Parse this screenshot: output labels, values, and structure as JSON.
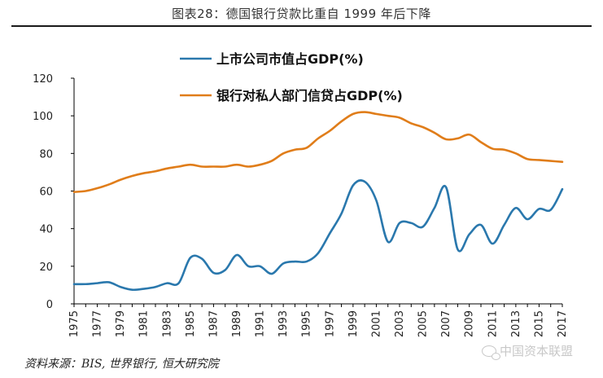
{
  "figure": {
    "title": "图表28：德国银行贷款比重自 1999 年后下降",
    "source": "资料来源：BIS, 世界银行, 恒大研究院",
    "watermark": "中国资本联盟"
  },
  "colors": {
    "series_market_cap": "#2a78ad",
    "series_bank_credit": "#e07d1a",
    "axis": "#000000"
  },
  "chart_data": {
    "type": "line",
    "title": "图表28：德国银行贷款比重自 1999 年后下降",
    "xlabel": "",
    "ylabel": "",
    "ylim": [
      0,
      120
    ],
    "yticks": [
      0,
      20,
      40,
      60,
      80,
      100,
      120
    ],
    "xlim": [
      1975,
      2017
    ],
    "xticks": [
      "1975",
      "1977",
      "1979",
      "1981",
      "1983",
      "1985",
      "1987",
      "1989",
      "1991",
      "1993",
      "1995",
      "1997",
      "1999",
      "2001",
      "2003",
      "2005",
      "2007",
      "2009",
      "2011",
      "2013",
      "2015",
      "2017"
    ],
    "legend_position": "top-center",
    "x": [
      1975,
      1976,
      1977,
      1978,
      1979,
      1980,
      1981,
      1982,
      1983,
      1984,
      1985,
      1986,
      1987,
      1988,
      1989,
      1990,
      1991,
      1992,
      1993,
      1994,
      1995,
      1996,
      1997,
      1998,
      1999,
      2000,
      2001,
      2002,
      2003,
      2004,
      2005,
      2006,
      2007,
      2008,
      2009,
      2010,
      2011,
      2012,
      2013,
      2014,
      2015,
      2016,
      2017
    ],
    "series": [
      {
        "name": "上市公司市值占GDP(%)",
        "values": [
          10.5,
          10.5,
          11,
          11.5,
          9,
          7.5,
          8,
          9,
          11,
          11,
          24.5,
          24,
          16.5,
          18,
          26,
          20,
          20,
          16,
          21.5,
          22.5,
          22.5,
          27,
          37.5,
          48,
          63,
          65,
          55,
          33,
          43,
          43,
          41,
          51,
          62,
          29,
          37,
          42,
          32,
          42,
          51,
          45,
          50.5,
          50,
          61
        ]
      },
      {
        "name": "银行对私人部门信贷占GDP(%)",
        "values": [
          59.5,
          60,
          61.5,
          63.5,
          66,
          68,
          69.5,
          70.5,
          72,
          73,
          74,
          73,
          73,
          73,
          74,
          73,
          74,
          76,
          80,
          82,
          83,
          88,
          92,
          97,
          101,
          102,
          101,
          100,
          99,
          96,
          94,
          91,
          87.5,
          88,
          90,
          86,
          82.5,
          82,
          80,
          77,
          76.5,
          76,
          75.5
        ]
      }
    ]
  }
}
